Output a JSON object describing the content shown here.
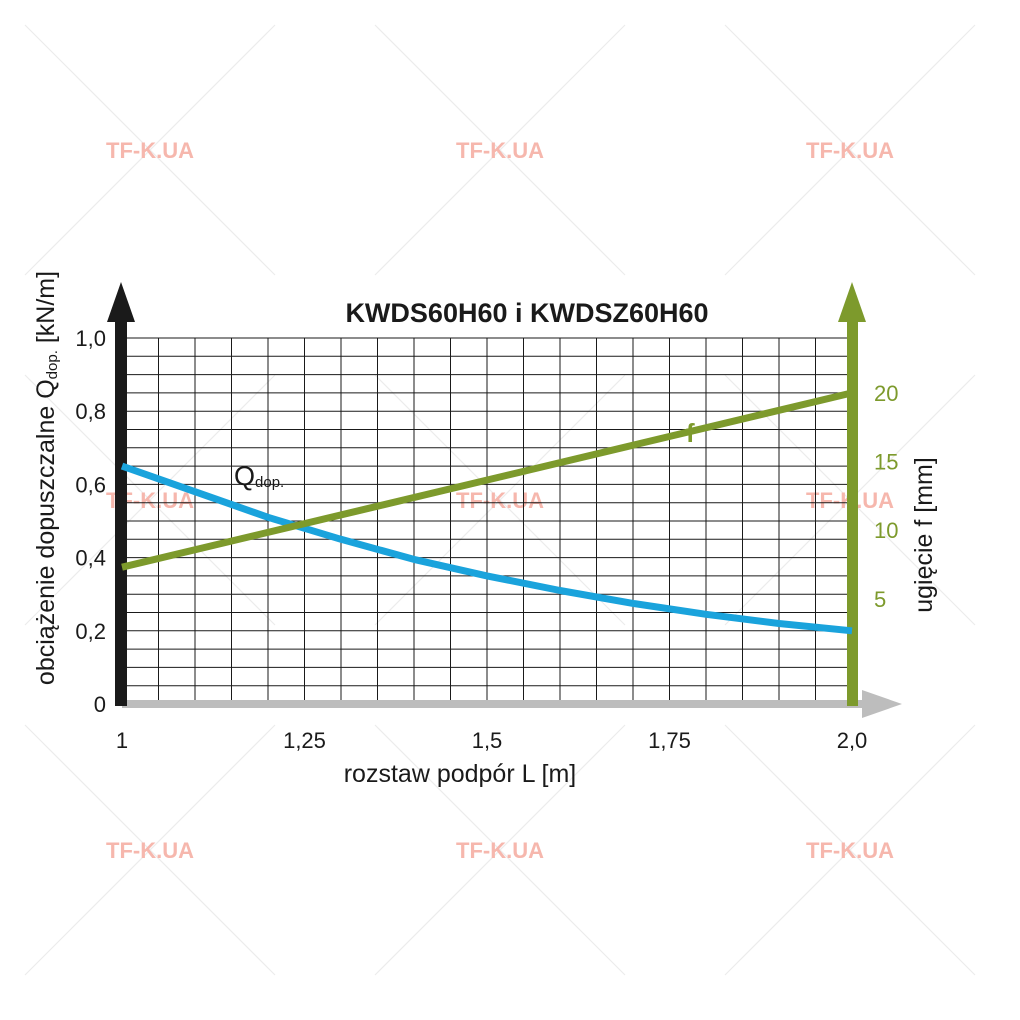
{
  "watermark": {
    "text": "TF-K.UA",
    "color": "#f6b7ad"
  },
  "colors": {
    "left_axis": "#1a1a1a",
    "right_axis": "#7d9a2c",
    "x_axis": "#bdbdbd",
    "q_series": "#1aa3dc",
    "f_series": "#7d9a2c",
    "grid": "#1a1a1a"
  },
  "chart_data": {
    "type": "line",
    "title": "KWDS60H60 i KWDSZ60H60",
    "xlabel": "rozstaw podpór L [m]",
    "ylabel_left": {
      "main": "obciążenie dopuszczalne Q",
      "sub": "dop.",
      "unit": " [kN/m]"
    },
    "ylabel_right": "ugięcie f [mm]",
    "xlim": [
      1,
      2
    ],
    "ylim_left": [
      0,
      1
    ],
    "ylim_right": [
      -2.667,
      24
    ],
    "x_ticks": [
      {
        "value": 1,
        "label": "1"
      },
      {
        "value": 1.25,
        "label": "1,25"
      },
      {
        "value": 1.5,
        "label": "1,5"
      },
      {
        "value": 1.75,
        "label": "1,75"
      },
      {
        "value": 2,
        "label": "2,0"
      }
    ],
    "y_ticks_left": [
      {
        "value": 0,
        "label": "0"
      },
      {
        "value": 0.2,
        "label": "0,2"
      },
      {
        "value": 0.4,
        "label": "0,4"
      },
      {
        "value": 0.6,
        "label": "0,6"
      },
      {
        "value": 0.8,
        "label": "0,8"
      },
      {
        "value": 1.0,
        "label": "1,0"
      }
    ],
    "y_ticks_right": [
      {
        "value": 5,
        "label": "5"
      },
      {
        "value": 10,
        "label": "10"
      },
      {
        "value": 15,
        "label": "15"
      },
      {
        "value": 20,
        "label": "20"
      }
    ],
    "grid": true,
    "series": [
      {
        "name": "Q",
        "name_sub": "dop.",
        "axis": "left",
        "color": "#1aa3dc",
        "x": [
          1.0,
          1.1,
          1.2,
          1.3,
          1.4,
          1.5,
          1.6,
          1.7,
          1.8,
          1.9,
          2.0
        ],
        "y": [
          0.65,
          0.58,
          0.51,
          0.45,
          0.395,
          0.35,
          0.31,
          0.275,
          0.245,
          0.22,
          0.2
        ]
      },
      {
        "name": "f",
        "axis": "right",
        "color": "#7d9a2c",
        "x": [
          1.0,
          2.0
        ],
        "y": [
          7.3,
          20.0
        ]
      }
    ]
  }
}
